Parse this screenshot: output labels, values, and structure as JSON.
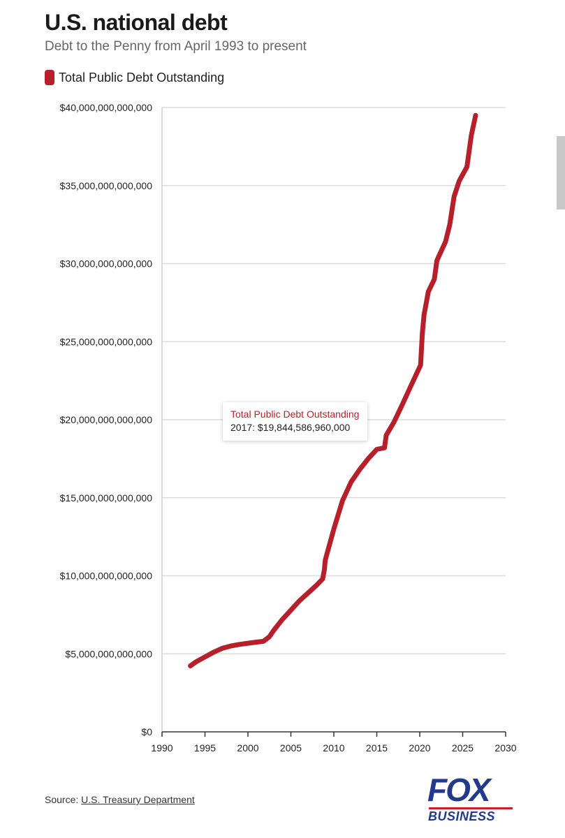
{
  "header": {
    "title": "U.S. national debt",
    "subtitle": "Debt to the Penny from April 1993 to present"
  },
  "legend": {
    "label": "Total Public Debt Outstanding",
    "color": "#b5202b"
  },
  "tooltip": {
    "series": "Total Public Debt Outstanding",
    "value_text": "2017: $19,844,586,960,000"
  },
  "footer": {
    "source_prefix": "Source: ",
    "source_link": "U.S. Treasury Department",
    "logo_main": "FOX",
    "logo_sub": "BUSINESS",
    "logo_colors": {
      "blue": "#233a8c",
      "red": "#c8202e"
    }
  },
  "chart_data": {
    "type": "line",
    "title": "U.S. national debt",
    "subtitle": "Debt to the Penny from April 1993 to present",
    "xlabel": "",
    "ylabel": "",
    "xlim": [
      1990,
      2030
    ],
    "ylim": [
      0,
      40000000000000
    ],
    "x_ticks": [
      1990,
      1995,
      2000,
      2005,
      2010,
      2015,
      2020,
      2025,
      2030
    ],
    "y_ticks": [
      {
        "value": 0,
        "label": "$0"
      },
      {
        "value": 5000000000000,
        "label": "$5,000,000,000,000"
      },
      {
        "value": 10000000000000,
        "label": "$10,000,000,000,000"
      },
      {
        "value": 15000000000000,
        "label": "$15,000,000,000,000"
      },
      {
        "value": 20000000000000,
        "label": "$20,000,000,000,000"
      },
      {
        "value": 25000000000000,
        "label": "$25,000,000,000,000"
      },
      {
        "value": 30000000000000,
        "label": "$30,000,000,000,000"
      },
      {
        "value": 35000000000000,
        "label": "$35,000,000,000,000"
      },
      {
        "value": 40000000000000,
        "label": "$40,000,000,000,000"
      }
    ],
    "grid": "horizontal",
    "legend_position": "top-left",
    "series": [
      {
        "name": "Total Public Debt Outstanding",
        "color": "#b5202b",
        "x": [
          1993.3,
          1994,
          1995,
          1996,
          1997,
          1998,
          1999,
          2000,
          2001,
          2001.8,
          2002.5,
          2003,
          2004,
          2005,
          2006,
          2007,
          2008,
          2008.7,
          2008.9,
          2009,
          2010,
          2011,
          2012,
          2013,
          2014,
          2015,
          2015.9,
          2016.1,
          2017,
          2018,
          2019,
          2020.1,
          2020.3,
          2020.5,
          2021,
          2021.7,
          2022,
          2023,
          2023.5,
          2024,
          2024.6,
          2025.5,
          2026,
          2026.5
        ],
        "y": [
          4230000000000,
          4500000000000,
          4800000000000,
          5100000000000,
          5350000000000,
          5500000000000,
          5600000000000,
          5680000000000,
          5750000000000,
          5800000000000,
          6100000000000,
          6500000000000,
          7200000000000,
          7800000000000,
          8400000000000,
          8900000000000,
          9400000000000,
          9800000000000,
          10400000000000,
          11000000000000,
          13000000000000,
          14800000000000,
          16000000000000,
          16800000000000,
          17500000000000,
          18100000000000,
          18200000000000,
          19000000000000,
          19844586960000,
          21000000000000,
          22200000000000,
          23500000000000,
          25500000000000,
          26700000000000,
          28200000000000,
          29000000000000,
          30200000000000,
          31400000000000,
          32500000000000,
          34300000000000,
          35300000000000,
          36200000000000,
          38200000000000,
          39500000000000
        ]
      }
    ],
    "highlight": {
      "x": 2017,
      "y": 19844586960000
    }
  }
}
